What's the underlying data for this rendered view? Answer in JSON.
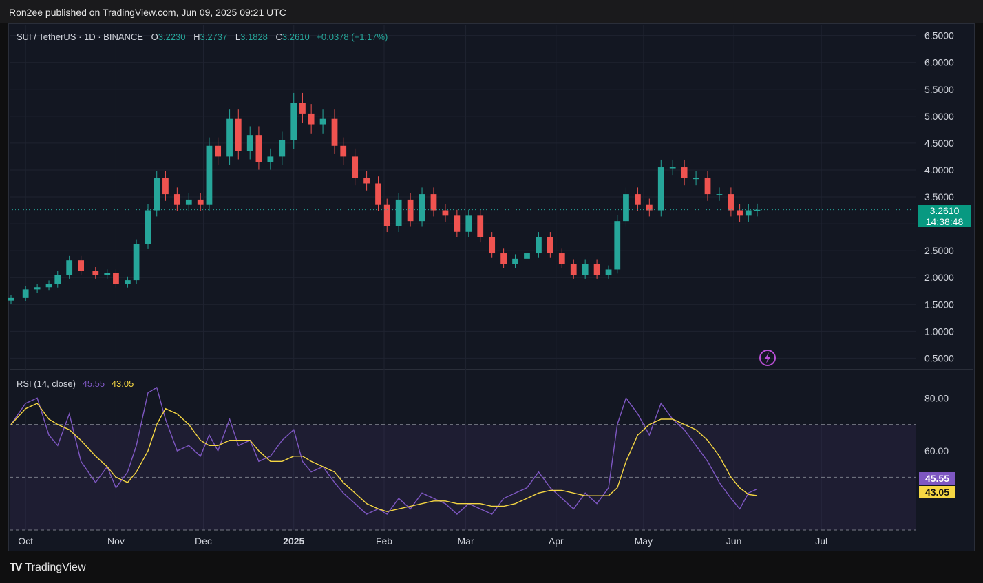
{
  "header": {
    "published": "Ron2ee published on TradingView.com, Jun 09, 2025 09:21 UTC"
  },
  "symbol": {
    "pair": "SUI / TetherUS · 1D · BINANCE",
    "open_label": "O",
    "open": "3.2230",
    "high_label": "H",
    "high": "3.2737",
    "low_label": "L",
    "low": "3.1828",
    "close_label": "C",
    "close": "3.2610",
    "change": "+0.0378 (+1.17%)"
  },
  "last_price": {
    "price": "3.2610",
    "countdown": "14:38:48"
  },
  "rsi": {
    "label": "RSI (14, close)",
    "value": "45.55",
    "ma": "43.05"
  },
  "footer": {
    "brand": "TradingView",
    "logo": "TV"
  },
  "colors": {
    "up": "#26a69a",
    "down": "#ef5350",
    "rsi": "#7e57c2",
    "rsi_ma": "#f6d743",
    "background": "#131722"
  },
  "chart_data": [
    {
      "type": "candlestick",
      "title": "SUI / TetherUS · 1D · BINANCE",
      "price_ticks": [
        "6.5000",
        "6.0000",
        "5.5000",
        "5.0000",
        "4.5000",
        "4.0000",
        "3.5000",
        "3.0000",
        "2.5000",
        "2.0000",
        "1.5000",
        "1.0000",
        "0.5000"
      ],
      "ylim": [
        0.3,
        6.7
      ],
      "x_ticks": [
        "Oct",
        "Nov",
        "Dec",
        "2025",
        "Feb",
        "Mar",
        "Apr",
        "May",
        "Jun",
        "Jul"
      ],
      "grid": true,
      "last_close": 3.261,
      "series": [
        {
          "name": "close",
          "x": [
            "2024-09-26",
            "2024-10-01",
            "2024-10-05",
            "2024-10-09",
            "2024-10-12",
            "2024-10-16",
            "2024-10-20",
            "2024-10-25",
            "2024-10-29",
            "2024-11-01",
            "2024-11-05",
            "2024-11-08",
            "2024-11-12",
            "2024-11-15",
            "2024-11-18",
            "2024-11-22",
            "2024-11-26",
            "2024-11-30",
            "2024-12-03",
            "2024-12-06",
            "2024-12-10",
            "2024-12-13",
            "2024-12-17",
            "2024-12-20",
            "2024-12-24",
            "2024-12-28",
            "2025-01-01",
            "2025-01-04",
            "2025-01-07",
            "2025-01-11",
            "2025-01-15",
            "2025-01-18",
            "2025-01-22",
            "2025-01-26",
            "2025-01-30",
            "2025-02-02",
            "2025-02-06",
            "2025-02-10",
            "2025-02-14",
            "2025-02-18",
            "2025-02-22",
            "2025-02-26",
            "2025-03-02",
            "2025-03-06",
            "2025-03-10",
            "2025-03-14",
            "2025-03-18",
            "2025-03-22",
            "2025-03-26",
            "2025-03-30",
            "2025-04-03",
            "2025-04-07",
            "2025-04-11",
            "2025-04-15",
            "2025-04-19",
            "2025-04-22",
            "2025-04-25",
            "2025-04-29",
            "2025-05-03",
            "2025-05-07",
            "2025-05-11",
            "2025-05-15",
            "2025-05-19",
            "2025-05-23",
            "2025-05-27",
            "2025-05-31",
            "2025-06-03",
            "2025-06-06",
            "2025-06-09"
          ],
          "values": [
            1.62,
            1.78,
            1.82,
            1.88,
            2.05,
            2.32,
            2.12,
            2.05,
            2.08,
            1.88,
            1.95,
            2.62,
            3.25,
            3.85,
            3.55,
            3.35,
            3.45,
            3.35,
            4.45,
            4.25,
            4.95,
            4.35,
            4.65,
            4.15,
            4.25,
            4.55,
            5.25,
            5.05,
            4.85,
            4.95,
            4.45,
            4.25,
            3.85,
            3.75,
            3.35,
            2.95,
            3.45,
            3.05,
            3.55,
            3.25,
            3.15,
            2.85,
            3.15,
            2.75,
            2.45,
            2.25,
            2.35,
            2.45,
            2.75,
            2.45,
            2.25,
            2.05,
            2.25,
            2.05,
            2.15,
            3.05,
            3.55,
            3.35,
            3.25,
            4.05,
            4.05,
            3.85,
            3.85,
            3.55,
            3.55,
            3.25,
            3.15,
            3.25,
            3.26
          ]
        }
      ]
    },
    {
      "type": "line",
      "title": "RSI (14, close)",
      "y_ticks": [
        "80.00",
        "60.00"
      ],
      "ylim": [
        30,
        90
      ],
      "band": [
        30,
        70
      ],
      "midline": 50,
      "series": [
        {
          "name": "RSI",
          "values": [
            70,
            78,
            80,
            66,
            62,
            74,
            56,
            48,
            54,
            46,
            52,
            62,
            82,
            84,
            72,
            60,
            62,
            58,
            66,
            60,
            72,
            62,
            64,
            56,
            58,
            64,
            68,
            56,
            52,
            54,
            48,
            44,
            40,
            36,
            38,
            36,
            42,
            38,
            44,
            42,
            40,
            36,
            40,
            38,
            36,
            42,
            44,
            46,
            52,
            46,
            42,
            38,
            44,
            40,
            46,
            70,
            80,
            74,
            66,
            78,
            72,
            68,
            62,
            56,
            48,
            42,
            38,
            44,
            45.55
          ]
        },
        {
          "name": "MA",
          "values": [
            70,
            76,
            78,
            72,
            70,
            68,
            64,
            58,
            54,
            50,
            48,
            52,
            60,
            70,
            76,
            74,
            70,
            64,
            62,
            62,
            64,
            64,
            64,
            60,
            56,
            56,
            58,
            58,
            56,
            54,
            52,
            48,
            44,
            40,
            38,
            37,
            38,
            39,
            40,
            41,
            41,
            40,
            40,
            40,
            39,
            39,
            40,
            42,
            44,
            45,
            45,
            44,
            43,
            43,
            43,
            46,
            56,
            66,
            70,
            72,
            72,
            70,
            68,
            64,
            58,
            50,
            46,
            43.5,
            43.05
          ]
        }
      ]
    }
  ]
}
